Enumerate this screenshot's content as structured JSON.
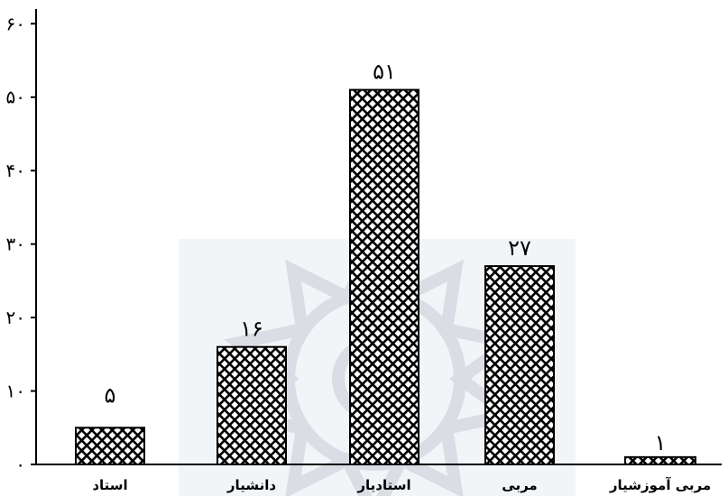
{
  "chart_data": {
    "type": "bar",
    "categories": [
      "استاد",
      "دانشیار",
      "استادیار",
      "مربی",
      "مربی آموزشیار"
    ],
    "values": [
      5,
      16,
      51,
      27,
      1
    ],
    "data_labels": [
      "۵",
      "۱۶",
      "۵۱",
      "۲۷",
      "۱"
    ],
    "y_ticks": [
      0,
      10,
      20,
      30,
      40,
      50,
      60
    ],
    "y_tick_labels": [
      "۰",
      "۱۰",
      "۲۰",
      "۳۰",
      "۴۰",
      "۵۰",
      "۶۰"
    ],
    "ylim": [
      0,
      62
    ],
    "grid": false,
    "bar_fill": "crosshatch",
    "colors": {
      "ink": "#000000",
      "background": "#ffffff",
      "watermark": "#b9c3d2"
    }
  }
}
